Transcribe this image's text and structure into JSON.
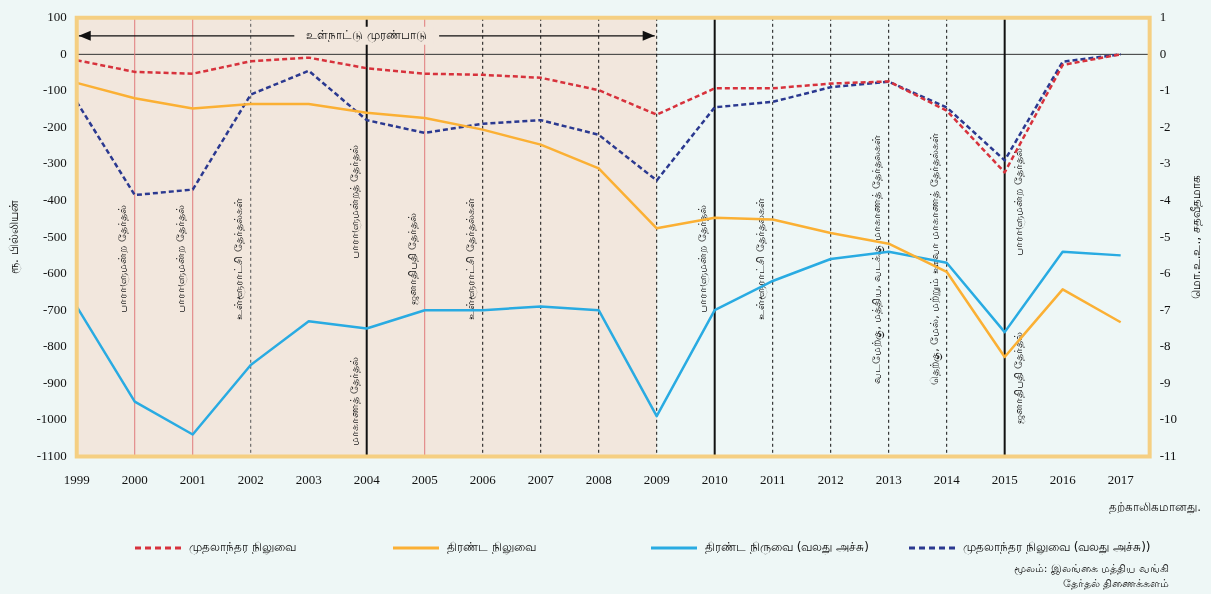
{
  "chart_data": {
    "type": "line",
    "ylabel": "ரூ. பில்லியன்",
    "y2label": "மொ.உ.உ., சதவீதமாக",
    "x": [
      1999,
      2000,
      2001,
      2002,
      2003,
      2004,
      2005,
      2006,
      2007,
      2008,
      2009,
      2010,
      2011,
      2012,
      2013,
      2014,
      2015,
      2016,
      2017
    ],
    "xlim": [
      1999,
      2017.5
    ],
    "xticks": [
      1999,
      2000,
      2001,
      2002,
      2003,
      2004,
      2005,
      2006,
      2007,
      2008,
      2009,
      2010,
      2011,
      2012,
      2013,
      2014,
      2015,
      2016,
      2017
    ],
    "ylim": [
      -1100,
      100
    ],
    "yticks": [
      -1100,
      -1000,
      -900,
      -800,
      -700,
      -600,
      -500,
      -400,
      -300,
      -200,
      -100,
      0,
      100
    ],
    "y2lim": [
      -11,
      1
    ],
    "y2ticks": [
      -11,
      -10,
      -9,
      -8,
      -7,
      -6,
      -5,
      -4,
      -3,
      -2,
      -1,
      0,
      1
    ],
    "grid": false,
    "legend": "bottom",
    "marker": "none",
    "series": [
      {
        "name": "முதலாந்தர நிலுவை",
        "color": "#d7323c",
        "line_style": "dashed",
        "values": [
          -16,
          -48,
          -53,
          -19,
          -9,
          -38,
          -53,
          -56,
          -64,
          -98,
          -165,
          -93,
          -93,
          -80,
          -74,
          -154,
          -323,
          -29,
          0
        ]
      },
      {
        "name": "திரண்ட நிலுவை",
        "color": "#fbb034",
        "line_style": "solid",
        "values": [
          -78,
          -120,
          -148,
          -136,
          -136,
          -160,
          -174,
          -206,
          -247,
          -312,
          -476,
          -447,
          -452,
          -489,
          -518,
          -595,
          -828,
          -643,
          -733
        ]
      },
      {
        "name": "திரண்ட நிருவை (வலது அச்சு)",
        "color": "#29abe2",
        "line_style": "solid",
        "axis": "y2",
        "values": [
          -6.9,
          -9.5,
          -10.4,
          -8.5,
          -7.3,
          -7.5,
          -7.0,
          -7.0,
          -6.9,
          -7.0,
          -9.9,
          -7.0,
          -6.2,
          -5.6,
          -5.4,
          -5.7,
          -7.6,
          -5.4,
          -5.5
        ]
      },
      {
        "name": "முதலாந்தர நிலுவை (வலது அச்சு))",
        "color": "#2b3990",
        "line_style": "dashed",
        "axis": "y2",
        "values": [
          -1.3,
          -3.85,
          -3.7,
          -1.1,
          -0.45,
          -1.8,
          -2.15,
          -1.9,
          -1.8,
          -2.2,
          -3.45,
          -1.45,
          -1.3,
          -0.9,
          -0.75,
          -1.45,
          -2.9,
          -0.2,
          0
        ]
      }
    ],
    "bands": [
      {
        "axis": "x",
        "from": 1999,
        "to": 2009,
        "label": "உள்நாட்டு முரண்பாடு",
        "color": "#f2e7dd"
      }
    ],
    "ref_lines": [
      {
        "axis": "y",
        "value": 0,
        "color": "#333333",
        "line_style": "solid"
      },
      {
        "axis": "x",
        "value": 2000,
        "color": "#e07a7a",
        "line_style": "solid",
        "label": "பாராளுமன்ற தேர்தல்"
      },
      {
        "axis": "x",
        "value": 2001,
        "color": "#e07a7a",
        "line_style": "solid",
        "label": "பாராளுமன்ற தேர்தல்"
      },
      {
        "axis": "x",
        "value": 2002,
        "color": "#555555",
        "line_style": "dashed",
        "label": "உள்ளூராட்சி தேர்தல்கள்"
      },
      {
        "axis": "x",
        "value": 2004,
        "color": "#111111",
        "line_style": "solid",
        "label": "பாராளுமன்றத் தேர்தல்"
      },
      {
        "axis": "x",
        "value": 2005,
        "color": "#e07a7a",
        "line_style": "solid",
        "label": "ஜனாதிபதி தேர்தல்"
      },
      {
        "axis": "x",
        "value": 2006,
        "color": "#111111",
        "line_style": "dashed",
        "label": "உள்ளூராட்சி தேர்தல்கள்"
      },
      {
        "axis": "x",
        "value": 2007,
        "color": "#111111",
        "line_style": "dashed"
      },
      {
        "axis": "x",
        "value": 2008,
        "color": "#111111",
        "line_style": "dashed"
      },
      {
        "axis": "x",
        "value": 2009,
        "color": "#111111",
        "line_style": "dashed"
      },
      {
        "axis": "x",
        "value": 2010,
        "color": "#111111",
        "line_style": "solid",
        "label": "பாராளுமன்ற தேர்தல்"
      },
      {
        "axis": "x",
        "value": 2011,
        "color": "#111111",
        "line_style": "dashed",
        "label": "உள்ளூராட்சி தேர்தல்கள்"
      },
      {
        "axis": "x",
        "value": 2012,
        "color": "#111111",
        "line_style": "dashed"
      },
      {
        "axis": "x",
        "value": 2013,
        "color": "#111111",
        "line_style": "dashed",
        "label": "வடமேற்கு, மத்திய, வடக்கு மாகாணத் தேர்தலகள்"
      },
      {
        "axis": "x",
        "value": 2014,
        "color": "#111111",
        "line_style": "dashed",
        "label": "தெற்கு, மேல், மற்றும் ஊவா மாகாணத் தேர்தல்கள்"
      },
      {
        "axis": "x",
        "value": 2015,
        "color": "#111111",
        "line_style": "solid",
        "label": "பாராளுமன்ற தேர்தல்"
      }
    ],
    "annotations": [
      "தற்காலிகமானது.",
      "மூலம்: இலங்கை மத்திய வங்கி",
      "தேர்தல் திணைக்களம்",
      {
        "text": "மாகாணத் தேர்தல்",
        "x": 2004,
        "y": -950
      },
      {
        "text": "ஜனாதிபதி தேர்தல்",
        "x": 2015,
        "y": -886
      }
    ]
  }
}
